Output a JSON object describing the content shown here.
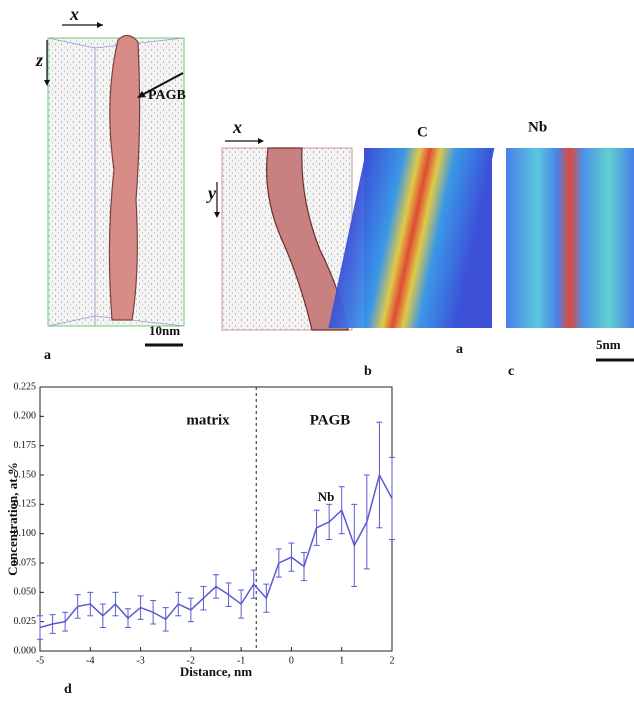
{
  "figure": {
    "labels": [
      "x",
      "z",
      "PAGB",
      "10nm",
      "a",
      "x",
      "y",
      "C",
      "Nb",
      "b",
      "a",
      "5nm",
      "c",
      "d"
    ]
  },
  "chart_data": {
    "type": "line",
    "xlabel": "Distance, nm",
    "ylabel": "Concentration, at.%",
    "annotations": [
      "matrix",
      "PAGB",
      "Nb"
    ],
    "vline": -0.7,
    "x": [
      -5,
      -4.75,
      -4.5,
      -4.25,
      -4,
      -3.75,
      -3.5,
      -3.25,
      -3,
      -2.75,
      -2.5,
      -2.25,
      -2,
      -1.75,
      -1.5,
      -1.25,
      -1,
      -0.75,
      -0.5,
      -0.25,
      0,
      0.25,
      0.5,
      0.75,
      1,
      1.25,
      1.5,
      1.75,
      2
    ],
    "series": [
      {
        "name": "Nb",
        "color": "#5a5ad2",
        "values": [
          0.02,
          0.023,
          0.025,
          0.038,
          0.04,
          0.03,
          0.04,
          0.028,
          0.037,
          0.033,
          0.027,
          0.04,
          0.035,
          0.045,
          0.055,
          0.048,
          0.04,
          0.057,
          0.045,
          0.075,
          0.08,
          0.072,
          0.105,
          0.11,
          0.12,
          0.09,
          0.11,
          0.15,
          0.13
        ],
        "errors": [
          0.01,
          0.008,
          0.008,
          0.01,
          0.01,
          0.01,
          0.01,
          0.008,
          0.01,
          0.01,
          0.01,
          0.01,
          0.01,
          0.01,
          0.01,
          0.01,
          0.012,
          0.012,
          0.012,
          0.012,
          0.012,
          0.012,
          0.015,
          0.015,
          0.02,
          0.035,
          0.04,
          0.045,
          0.035
        ]
      }
    ],
    "xlim": [
      -5,
      2
    ],
    "xticks": [
      -5,
      -4,
      -3,
      -2,
      -1,
      0,
      1,
      2
    ],
    "ylim": [
      0,
      0.225
    ],
    "yticks": [
      {
        "value": 0,
        "label": "0.000"
      },
      0.025,
      {
        "value": 0.05,
        "label": "0.050"
      },
      0.075,
      {
        "value": 0.1,
        "label": "0.100"
      },
      0.125,
      {
        "value": 0.15,
        "label": "0.150"
      },
      0.175,
      {
        "value": 0.2,
        "label": "0.200"
      },
      0.225
    ]
  }
}
